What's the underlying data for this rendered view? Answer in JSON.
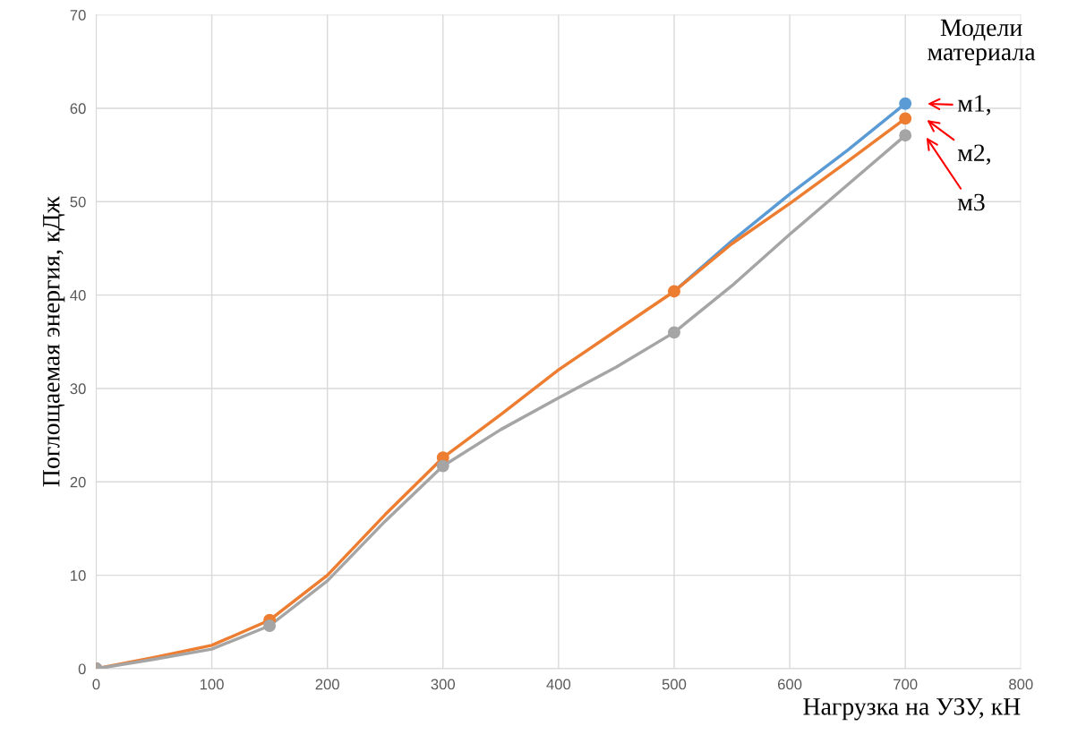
{
  "chart_data": {
    "type": "line",
    "xlabel": "Нагрузка на УЗУ, кН",
    "ylabel": "Поглощаемая энергия, кДж",
    "legend_title": "Модели материала",
    "x": [
      0,
      50,
      100,
      150,
      200,
      250,
      300,
      350,
      400,
      450,
      500,
      550,
      600,
      650,
      700
    ],
    "series": [
      {
        "name": "м1,",
        "color": "#5b9bd5",
        "marker": "none",
        "values": [
          null,
          null,
          null,
          null,
          null,
          null,
          null,
          null,
          null,
          null,
          40.4,
          45.8,
          50.8,
          55.5,
          60.5
        ]
      },
      {
        "name": "м2,",
        "color": "#ed7d31",
        "marker": "none",
        "values": [
          0,
          1.2,
          2.5,
          5.2,
          10,
          16.5,
          22.6,
          27.2,
          32,
          36.2,
          40.4,
          45.5,
          49.8,
          54.3,
          58.9
        ]
      },
      {
        "name": "м3",
        "color": "#a5a5a5",
        "marker": "none",
        "values": [
          0,
          1,
          2.1,
          4.6,
          9.4,
          15.8,
          21.7,
          25.6,
          29,
          32.3,
          36,
          41,
          46.5,
          51.8,
          57.1
        ]
      },
      {
        "type": "scatter",
        "color": "#5b9bd5",
        "x": [
          0,
          150,
          300,
          500,
          700
        ],
        "values": [
          0,
          null,
          null,
          null,
          60.5
        ]
      },
      {
        "type": "scatter",
        "color": "#ed7d31",
        "x": [
          0,
          150,
          300,
          500,
          700
        ],
        "values": [
          0,
          5.2,
          22.6,
          40.4,
          58.9
        ]
      },
      {
        "type": "scatter",
        "color": "#a5a5a5",
        "x": [
          0,
          150,
          300,
          500,
          700
        ],
        "values": [
          0,
          4.6,
          21.7,
          36.0,
          57.1
        ]
      }
    ],
    "xlim": [
      0,
      800
    ],
    "xticks": [
      0,
      100,
      200,
      300,
      400,
      500,
      600,
      700,
      800
    ],
    "ylim": [
      0,
      70
    ],
    "yticks": [
      0,
      10,
      20,
      30,
      40,
      50,
      60,
      70
    ],
    "grid": true,
    "marker": "circle",
    "line_style": "solid",
    "legend": false
  }
}
